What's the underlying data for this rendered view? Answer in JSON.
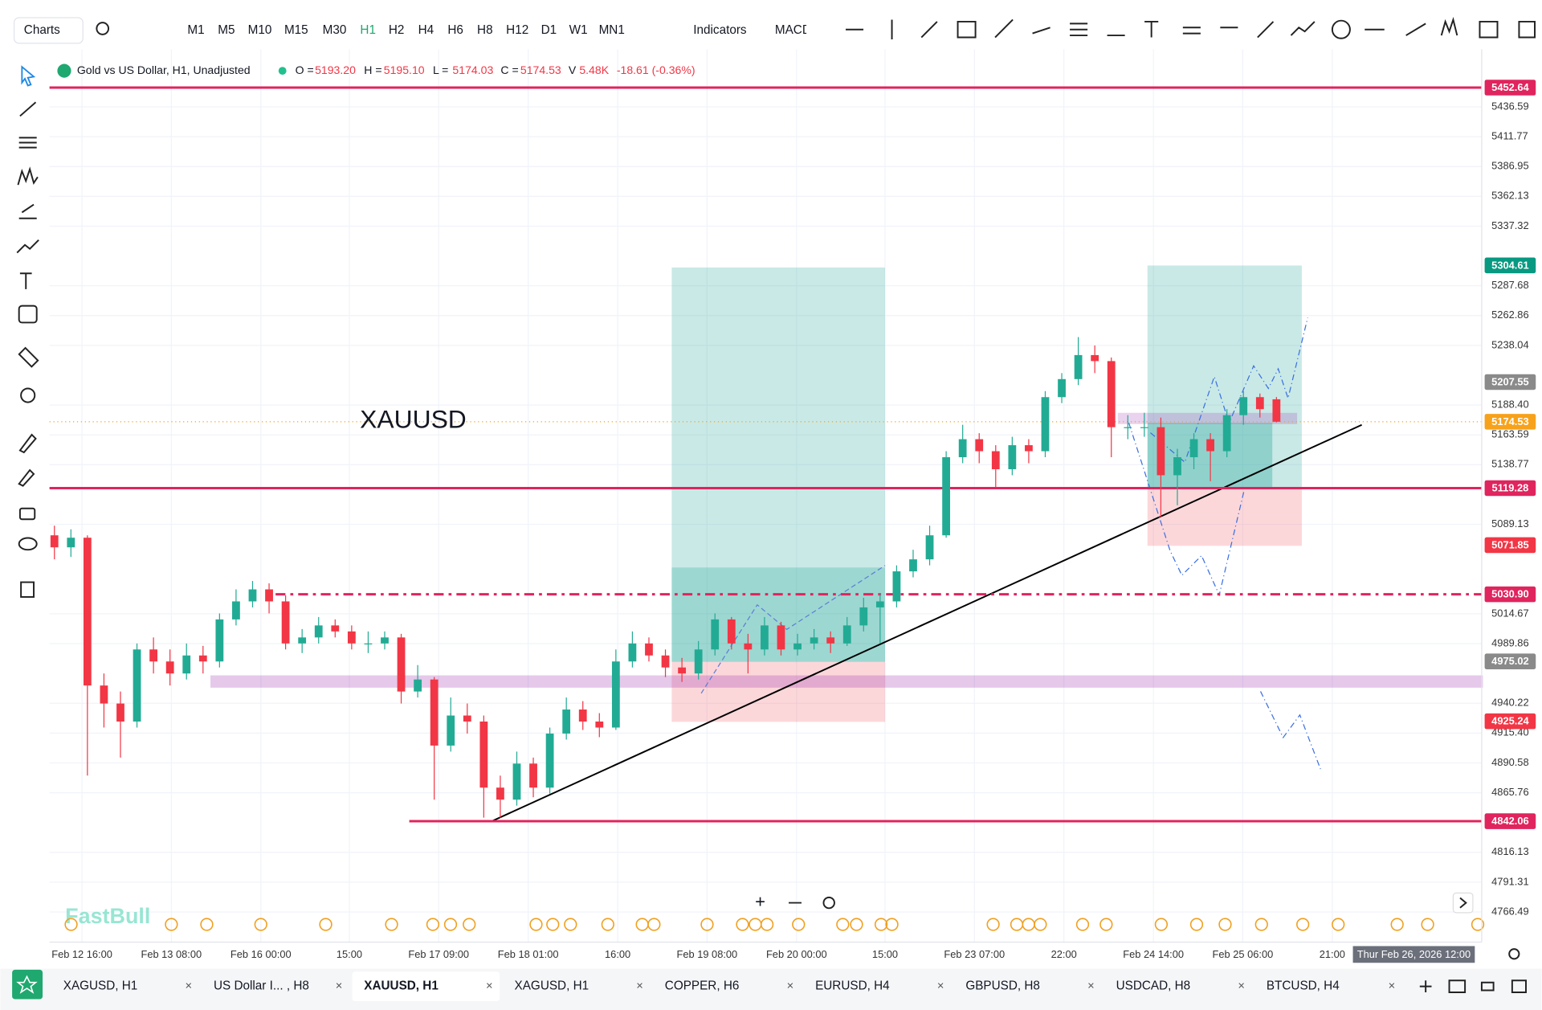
{
  "ui": {
    "charts_button": "Charts",
    "timeframes": [
      "M1",
      "M5",
      "M10",
      "M15",
      "M30",
      "H1",
      "H2",
      "H4",
      "H6",
      "H8",
      "H12",
      "D1",
      "W1",
      "MN1"
    ],
    "active_timeframe": "H1",
    "indicators": "Indicators",
    "indicator_tab": "MACD",
    "tabs": [
      "XAGUSD, H1",
      "US Dollar I... , H8",
      "XAUUSD, H1",
      "XAGUSD, H1",
      "COPPER, H6",
      "EURUSD, H4",
      "GBPUSD, H8",
      "USDCAD, H8",
      "BTCUSD, H4"
    ],
    "active_tab": "XAUUSD, H1"
  },
  "legend": {
    "symbol": "Gold vs US Dollar, H1, Unadjusted",
    "o_label": "O =",
    "o": "5193.20",
    "h_label": "H =",
    "h": "5195.10",
    "l_label": "L =",
    "l": "5174.03",
    "c_label": "C =",
    "c": "5174.53",
    "v_label": "V",
    "v": "5.48K",
    "change": "-18.61 (-0.36%)"
  },
  "chart_data": {
    "type": "candlestick",
    "annotation": "XAUUSD",
    "watermark": "FastBull",
    "up_color": "#22ab94",
    "down_color": "#f23645",
    "grid": true,
    "ylim": [
      4741.4,
      5484.6
    ],
    "yticks": [
      5436.59,
      5411.77,
      5386.95,
      5362.13,
      5337.32,
      5287.68,
      5262.86,
      5238.04,
      {
        "value": 5188.4,
        "label": "5188.40"
      },
      5163.59,
      5138.77,
      5089.13,
      5014.67,
      4989.86,
      4940.22,
      {
        "value": 4915.4,
        "label": "4915.40"
      },
      4890.58,
      4865.76,
      4816.13,
      4791.31,
      4766.49
    ],
    "xticks": [
      {
        "value": 1.67,
        "label": "Feb 12 16:00"
      },
      {
        "value": 7.08,
        "label": "Feb 13 08:00"
      },
      {
        "value": 12.5,
        "label": "Feb 16 00:00"
      },
      {
        "value": 17.86,
        "label": "15:00"
      },
      {
        "value": 23.27,
        "label": "Feb 17 09:00"
      },
      {
        "value": 28.69,
        "label": "Feb 18 01:00"
      },
      {
        "value": 34.11,
        "label": "16:00"
      },
      {
        "value": 39.52,
        "label": "Feb 19 08:00"
      },
      {
        "value": 44.94,
        "label": "Feb 20 00:00"
      },
      {
        "value": 50.3,
        "label": "15:00"
      },
      {
        "value": 55.71,
        "label": "Feb 23 07:00"
      },
      {
        "value": 61.13,
        "label": "22:00"
      },
      {
        "value": 66.55,
        "label": "Feb 24 14:00"
      },
      {
        "value": 71.96,
        "label": "Feb 25 06:00"
      },
      {
        "value": 77.38,
        "label": "21:00"
      }
    ],
    "crosshair": {
      "value": 82.32,
      "label": "Thur Feb 26, 2026 12:00"
    },
    "price_lines": [
      {
        "price": 5452.64,
        "color": "#e0245e",
        "style": "solid"
      },
      {
        "price": 5304.61,
        "color": "#089981",
        "style": "none"
      },
      {
        "price": 5207.55,
        "color": "#8a8a8a",
        "style": "none"
      },
      {
        "price": 5174.53,
        "color": "#f7a21b",
        "style": "dotted"
      },
      {
        "price": 5119.28,
        "color": "#e0245e",
        "style": "solid"
      },
      {
        "price": 5071.85,
        "color": "#f23645",
        "style": "none"
      },
      {
        "price": 5030.9,
        "label": "5030.90",
        "color": "#e0245e",
        "style": "dashdot"
      },
      {
        "price": 4975.02,
        "color": "#8a8a8a",
        "style": "none"
      },
      {
        "price": 4925.24,
        "color": "#f23645",
        "style": "none"
      },
      {
        "price": 4842.06,
        "color": "#e0245e",
        "style": "solid"
      }
    ],
    "candles": [
      [
        5080,
        5088,
        5060,
        5070
      ],
      [
        5070,
        5085,
        5062,
        5078
      ],
      [
        5078,
        5080,
        4880,
        4955
      ],
      [
        4955,
        4965,
        4920,
        4940
      ],
      [
        4940,
        4950,
        4895,
        4925
      ],
      [
        4925,
        4990,
        4920,
        4985
      ],
      [
        4985,
        4995,
        4965,
        4975
      ],
      [
        4975,
        4985,
        4955,
        4965
      ],
      [
        4965,
        4990,
        4960,
        4980
      ],
      [
        4980,
        4988,
        4965,
        4975
      ],
      [
        4975,
        5015,
        4970,
        5010
      ],
      [
        5010,
        5035,
        5005,
        5025
      ],
      [
        5025,
        5042,
        5020,
        5035
      ],
      [
        5035,
        5040,
        5015,
        5025
      ],
      [
        5025,
        5030,
        4985,
        4990
      ],
      [
        4990,
        5002,
        4982,
        4995
      ],
      [
        4995,
        5012,
        4990,
        5005
      ],
      [
        5005,
        5010,
        4995,
        5000
      ],
      [
        5000,
        5005,
        4985,
        4990
      ],
      [
        4990,
        5000,
        4982,
        4990
      ],
      [
        4990,
        5000,
        4985,
        4995
      ],
      [
        4995,
        4998,
        4940,
        4950
      ],
      [
        4950,
        4972,
        4945,
        4960
      ],
      [
        4960,
        4962,
        4860,
        4905
      ],
      [
        4905,
        4945,
        4900,
        4930
      ],
      [
        4930,
        4940,
        4915,
        4925
      ],
      [
        4925,
        4930,
        4845,
        4870
      ],
      [
        4870,
        4880,
        4845,
        4860
      ],
      [
        4860,
        4900,
        4855,
        4890
      ],
      [
        4890,
        4895,
        4862,
        4870
      ],
      [
        4870,
        4920,
        4865,
        4915
      ],
      [
        4915,
        4945,
        4910,
        4935
      ],
      [
        4935,
        4942,
        4918,
        4925
      ],
      [
        4925,
        4932,
        4912,
        4920
      ],
      [
        4920,
        4985,
        4918,
        4975
      ],
      [
        4975,
        5000,
        4970,
        4990
      ],
      [
        4990,
        4995,
        4975,
        4980
      ],
      [
        4980,
        4985,
        4962,
        4970
      ],
      [
        4970,
        4978,
        4958,
        4965
      ],
      [
        4965,
        4992,
        4960,
        4985
      ],
      [
        4985,
        5015,
        4980,
        5010
      ],
      [
        5010,
        5012,
        4985,
        4990
      ],
      [
        4990,
        4998,
        4965,
        4985
      ],
      [
        4985,
        5012,
        4980,
        5005
      ],
      [
        5005,
        5008,
        4980,
        4985
      ],
      [
        4985,
        4998,
        4980,
        4990
      ],
      [
        4990,
        5002,
        4985,
        4995
      ],
      [
        4995,
        5000,
        4982,
        4990
      ],
      [
        4990,
        5012,
        4988,
        5005
      ],
      [
        5005,
        5028,
        5000,
        5020
      ],
      [
        5020,
        5032,
        4990,
        5025
      ],
      [
        5025,
        5055,
        5020,
        5050
      ],
      [
        5050,
        5068,
        5045,
        5060
      ],
      [
        5060,
        5088,
        5055,
        5080
      ],
      [
        5080,
        5150,
        5078,
        5145
      ],
      [
        5145,
        5172,
        5140,
        5160
      ],
      [
        5160,
        5165,
        5140,
        5150
      ],
      [
        5150,
        5155,
        5120,
        5135
      ],
      [
        5135,
        5162,
        5130,
        5155
      ],
      [
        5155,
        5160,
        5140,
        5150
      ],
      [
        5150,
        5200,
        5145,
        5195
      ],
      [
        5195,
        5215,
        5190,
        5210
      ],
      [
        5210,
        5245,
        5205,
        5230
      ],
      [
        5230,
        5238,
        5215,
        5225
      ],
      [
        5225,
        5228,
        5145,
        5170
      ],
      [
        5170,
        5180,
        5160,
        5170
      ],
      [
        5170,
        5182,
        5162,
        5170
      ],
      [
        5170,
        5178,
        5095,
        5130
      ],
      [
        5130,
        5152,
        5105,
        5145
      ],
      [
        5145,
        5165,
        5135,
        5160
      ],
      [
        5160,
        5165,
        5125,
        5150
      ],
      [
        5150,
        5185,
        5145,
        5180
      ],
      [
        5180,
        5200,
        5172,
        5195
      ],
      [
        5195,
        5198,
        5178,
        5185
      ],
      [
        5193.2,
        5195.1,
        5174.03,
        5174.53
      ]
    ]
  }
}
